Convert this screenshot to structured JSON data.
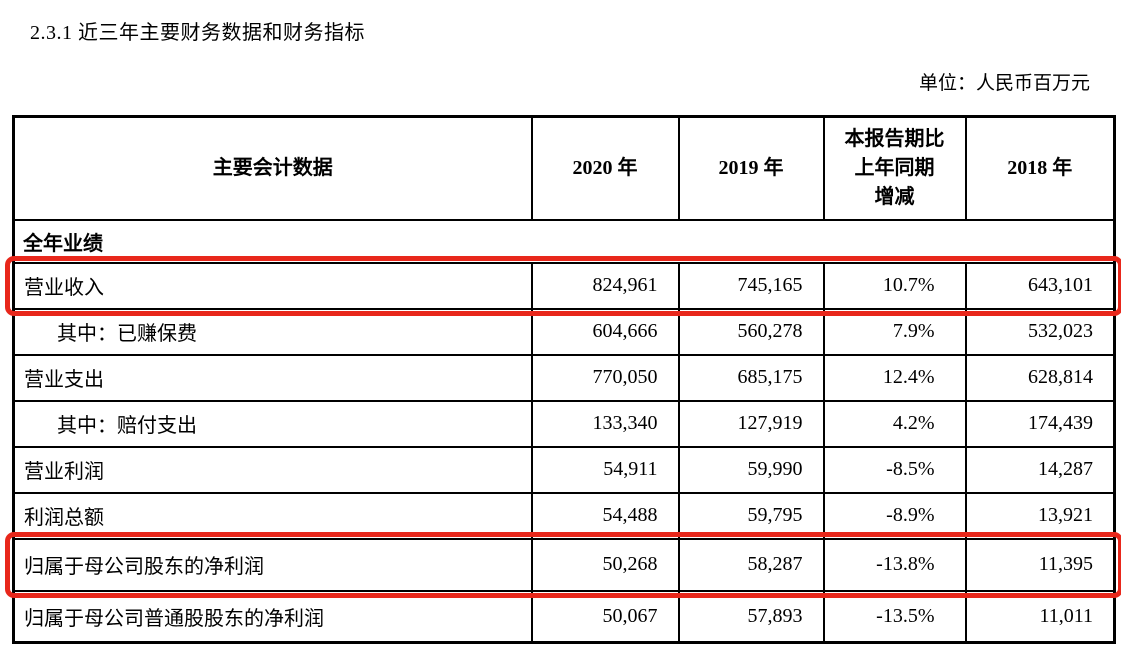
{
  "page": {
    "title": "2.3.1  近三年主要财务数据和财务指标",
    "unit_label": "单位：人民币百万元"
  },
  "highlight_color": "#e8271b",
  "table": {
    "columns": [
      {
        "label": "主要会计数据"
      },
      {
        "label": "2020 年"
      },
      {
        "label": "2019 年"
      },
      {
        "label": "本报告期比\n上年同期\n增减"
      },
      {
        "label": "2018 年"
      }
    ],
    "rows": [
      {
        "type": "section",
        "label": "全年业绩"
      },
      {
        "type": "data",
        "label": "营业收入",
        "indent": false,
        "highlight": true,
        "values": [
          "824,961",
          "745,165",
          "10.7%",
          "643,101"
        ]
      },
      {
        "type": "data",
        "label": "其中：已赚保费",
        "indent": true,
        "highlight": false,
        "values": [
          "604,666",
          "560,278",
          "7.9%",
          "532,023"
        ]
      },
      {
        "type": "data",
        "label": "营业支出",
        "indent": false,
        "highlight": false,
        "values": [
          "770,050",
          "685,175",
          "12.4%",
          "628,814"
        ]
      },
      {
        "type": "data",
        "label": "其中：赔付支出",
        "indent": true,
        "highlight": false,
        "values": [
          "133,340",
          "127,919",
          "4.2%",
          "174,439"
        ]
      },
      {
        "type": "data",
        "label": "营业利润",
        "indent": false,
        "highlight": false,
        "values": [
          "54,911",
          "59,990",
          "-8.5%",
          "14,287"
        ]
      },
      {
        "type": "data",
        "label": "利润总额",
        "indent": false,
        "highlight": false,
        "values": [
          "54,488",
          "59,795",
          "-8.9%",
          "13,921"
        ]
      },
      {
        "type": "data",
        "label": "归属于母公司股东的净利润",
        "indent": false,
        "highlight": true,
        "values": [
          "50,268",
          "58,287",
          "-13.8%",
          "11,395"
        ]
      },
      {
        "type": "data",
        "label": "归属于母公司普通股股东的净利润",
        "indent": false,
        "highlight": false,
        "values": [
          "50,067",
          "57,893",
          "-13.5%",
          "11,011"
        ]
      }
    ]
  }
}
